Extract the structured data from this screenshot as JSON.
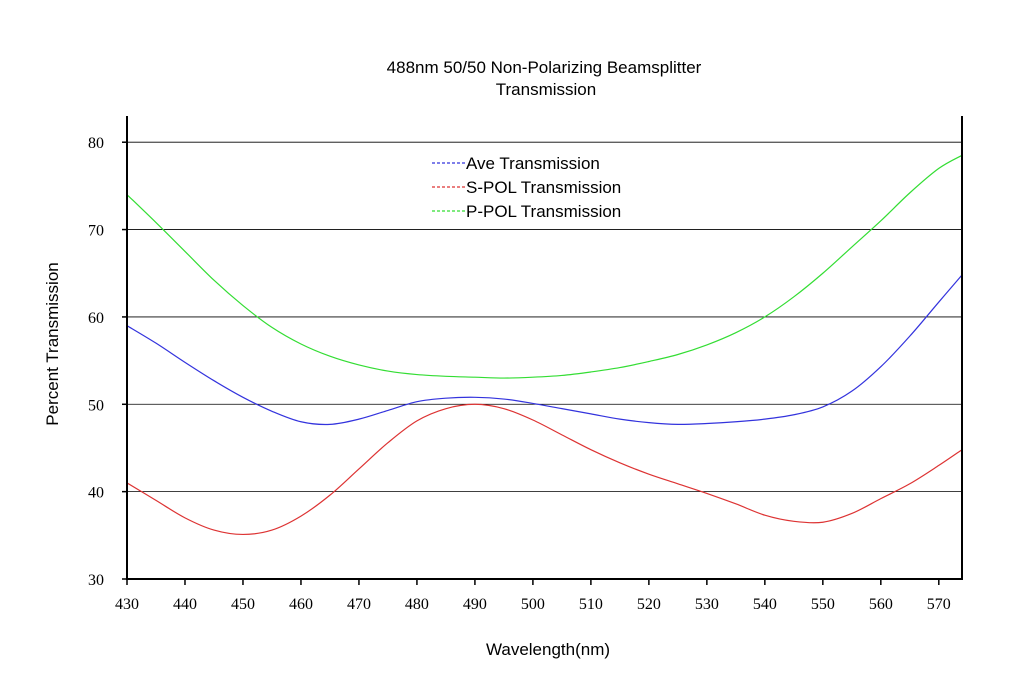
{
  "chart_data": {
    "type": "line",
    "title": "488nm 50/50 Non-Polarizing Beamsplitter",
    "subtitle": "Transmission",
    "xlabel": "Wavelength(nm)",
    "ylabel": "Percent  Transmission",
    "xlim": [
      430,
      574
    ],
    "ylim": [
      30,
      83
    ],
    "x_ticks": [
      430,
      440,
      450,
      460,
      470,
      480,
      490,
      500,
      510,
      520,
      530,
      540,
      550,
      560,
      570
    ],
    "y_ticks": [
      30,
      40,
      50,
      60,
      70,
      80
    ],
    "grid": "horizontal",
    "legend_position": "top-center",
    "x": [
      430,
      435,
      440,
      445,
      450,
      455,
      460,
      465,
      470,
      475,
      480,
      485,
      490,
      495,
      500,
      505,
      510,
      515,
      520,
      525,
      530,
      535,
      540,
      545,
      550,
      555,
      560,
      565,
      570,
      574
    ],
    "series": [
      {
        "name": "Ave Transmission",
        "color": "#3333dd",
        "values": [
          59.0,
          57.0,
          54.8,
          52.7,
          50.8,
          49.2,
          48.0,
          47.7,
          48.3,
          49.3,
          50.3,
          50.7,
          50.8,
          50.6,
          50.1,
          49.5,
          48.9,
          48.3,
          47.9,
          47.7,
          47.8,
          48.0,
          48.3,
          48.8,
          49.7,
          51.5,
          54.3,
          57.8,
          61.7,
          64.8
        ]
      },
      {
        "name": "S-POL Transmission",
        "color": "#dd3333",
        "values": [
          41.0,
          39.0,
          37.0,
          35.6,
          35.1,
          35.6,
          37.2,
          39.6,
          42.6,
          45.6,
          48.1,
          49.5,
          50.0,
          49.5,
          48.2,
          46.5,
          44.8,
          43.3,
          42.0,
          40.9,
          39.8,
          38.6,
          37.3,
          36.6,
          36.5,
          37.5,
          39.2,
          40.9,
          43.0,
          44.8
        ]
      },
      {
        "name": "P-POL Transmission",
        "color": "#33dd33",
        "values": [
          74.0,
          70.8,
          67.5,
          64.2,
          61.3,
          58.8,
          56.9,
          55.5,
          54.5,
          53.8,
          53.4,
          53.2,
          53.1,
          53.0,
          53.1,
          53.3,
          53.7,
          54.2,
          54.9,
          55.7,
          56.8,
          58.2,
          60.0,
          62.3,
          65.0,
          68.0,
          71.0,
          74.2,
          77.0,
          78.5
        ]
      }
    ]
  }
}
